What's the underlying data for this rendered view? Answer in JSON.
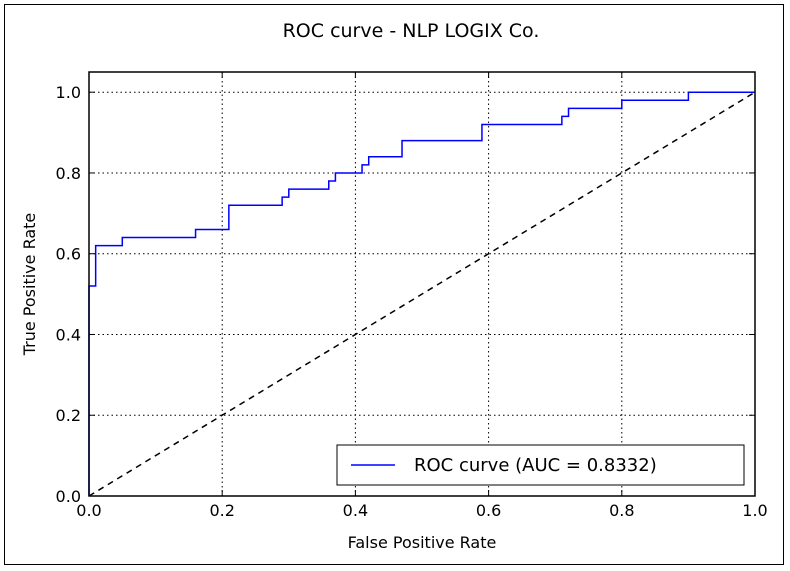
{
  "chart_data": {
    "type": "line",
    "title": "ROC curve - NLP LOGIX Co.",
    "xlabel": "False Positive Rate",
    "ylabel": "True Positive Rate",
    "xlim": [
      0.0,
      1.0
    ],
    "ylim": [
      0.0,
      1.05
    ],
    "xticks": [
      "0.0",
      "0.2",
      "0.4",
      "0.6",
      "0.8",
      "1.0"
    ],
    "yticks": [
      "0.0",
      "0.2",
      "0.4",
      "0.6",
      "0.8",
      "1.0"
    ],
    "grid": true,
    "legend_position": "lower-right",
    "colors": {
      "roc": "#0000ff",
      "diagonal": "#000000"
    },
    "series": [
      {
        "name": "ROC curve (AUC = 0.8332)",
        "style": "solid",
        "x": [
          0.0,
          0.0,
          0.01,
          0.01,
          0.05,
          0.05,
          0.16,
          0.16,
          0.21,
          0.21,
          0.29,
          0.29,
          0.3,
          0.3,
          0.36,
          0.36,
          0.37,
          0.37,
          0.41,
          0.41,
          0.42,
          0.42,
          0.47,
          0.47,
          0.59,
          0.59,
          0.71,
          0.71,
          0.72,
          0.72,
          0.8,
          0.8,
          0.9,
          0.9,
          1.0
        ],
        "y": [
          0.0,
          0.52,
          0.52,
          0.62,
          0.62,
          0.64,
          0.64,
          0.66,
          0.66,
          0.72,
          0.72,
          0.74,
          0.74,
          0.76,
          0.76,
          0.78,
          0.78,
          0.8,
          0.8,
          0.82,
          0.82,
          0.84,
          0.84,
          0.88,
          0.88,
          0.92,
          0.92,
          0.94,
          0.94,
          0.96,
          0.96,
          0.98,
          0.98,
          1.0,
          1.0
        ]
      },
      {
        "style": "dashed",
        "x": [
          0.0,
          1.0
        ],
        "y": [
          0.0,
          1.0
        ]
      }
    ]
  }
}
